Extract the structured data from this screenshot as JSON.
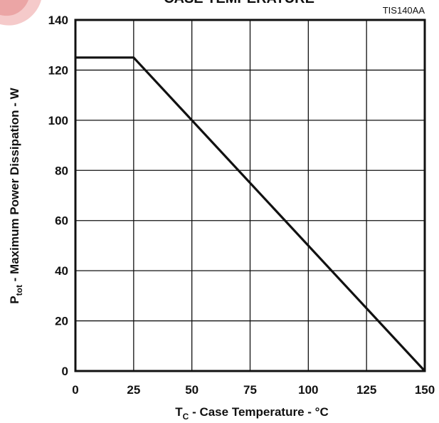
{
  "chart_data": {
    "type": "line",
    "title": "CASE TEMPERATURE",
    "figure_code": "TIS140AA",
    "xlabel": {
      "main": "T",
      "sub": "C",
      "rest": " - Case Temperature - °C"
    },
    "ylabel": {
      "main": "P",
      "sub": "tot",
      "rest": " - Maximum Power Dissipation - W"
    },
    "xlim": [
      0,
      150
    ],
    "ylim": [
      0,
      140
    ],
    "x_ticks": [
      0,
      25,
      50,
      75,
      100,
      125,
      150
    ],
    "y_ticks": [
      0,
      20,
      40,
      60,
      80,
      100,
      120,
      140
    ],
    "grid": true,
    "series": [
      {
        "x": [
          0,
          25,
          150
        ],
        "y": [
          125,
          125,
          0
        ]
      }
    ],
    "colors": {
      "line": "#111111",
      "grid": "#111111",
      "frame": "#111111",
      "title": "#000000",
      "logo": "#e8a0a0"
    }
  }
}
